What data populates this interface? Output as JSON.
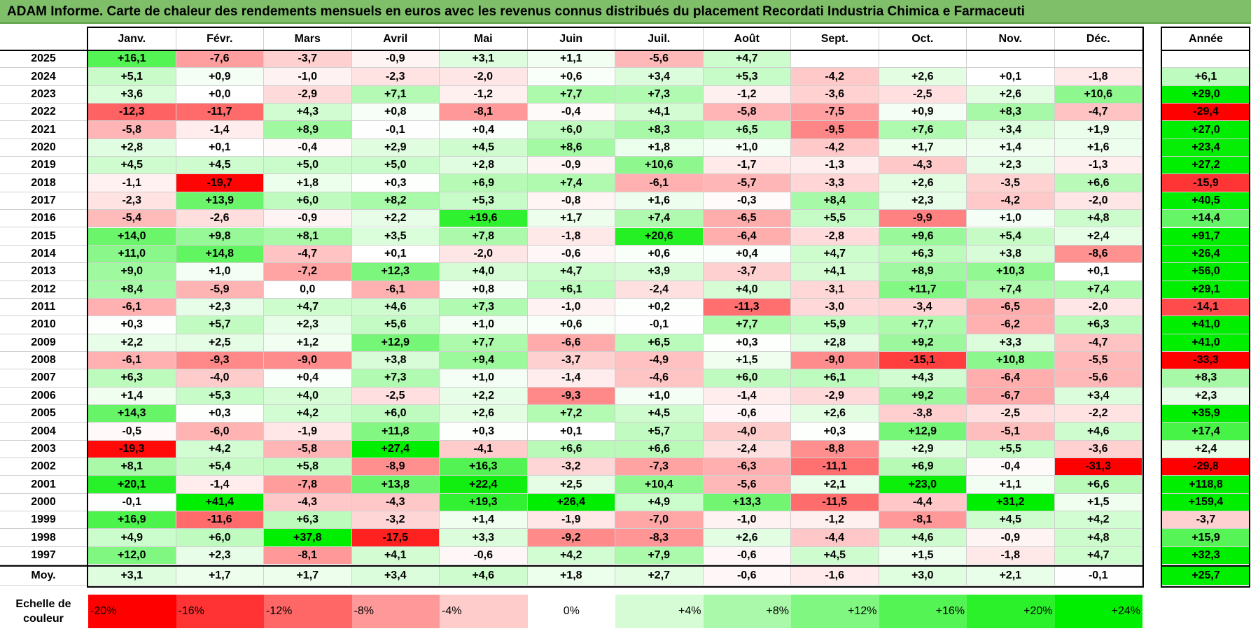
{
  "title": "ADAM Informe. Carte de chaleur des rendements mensuels en euros avec les revenus connus distribués du placement Recordati Industria Chimica e Farmaceuti",
  "chart_data": {
    "type": "heatmap",
    "months": [
      "Janv.",
      "Févr.",
      "Mars",
      "Avril",
      "Mai",
      "Juin",
      "Juil.",
      "Août",
      "Sept.",
      "Oct.",
      "Nov.",
      "Déc."
    ],
    "year_header": "Année",
    "rows": [
      {
        "year": "2025",
        "values": [
          "+16,1",
          "-7,6",
          "-3,7",
          "-0,9",
          "+3,1",
          "+1,1",
          "-5,6",
          "+4,7",
          "",
          "",
          "",
          ""
        ],
        "annual": ""
      },
      {
        "year": "2024",
        "values": [
          "+5,1",
          "+0,9",
          "-1,0",
          "-2,3",
          "-2,0",
          "+0,6",
          "+3,4",
          "+5,3",
          "-4,2",
          "+2,6",
          "+0,1",
          "-1,8"
        ],
        "annual": "+6,1"
      },
      {
        "year": "2023",
        "values": [
          "+3,6",
          "+0,0",
          "-2,9",
          "+7,1",
          "-1,2",
          "+7,7",
          "+7,3",
          "-1,2",
          "-3,6",
          "-2,5",
          "+2,6",
          "+10,6"
        ],
        "annual": "+29,0"
      },
      {
        "year": "2022",
        "values": [
          "-12,3",
          "-11,7",
          "+4,3",
          "+0,8",
          "-8,1",
          "-0,4",
          "+4,1",
          "-5,8",
          "-7,5",
          "+0,9",
          "+8,3",
          "-4,7"
        ],
        "annual": "-29,4"
      },
      {
        "year": "2021",
        "values": [
          "-5,8",
          "-1,4",
          "+8,9",
          "-0,1",
          "+0,4",
          "+6,0",
          "+8,3",
          "+6,5",
          "-9,5",
          "+7,6",
          "+3,4",
          "+1,9"
        ],
        "annual": "+27,0"
      },
      {
        "year": "2020",
        "values": [
          "+2,8",
          "+0,1",
          "-0,4",
          "+2,9",
          "+4,5",
          "+8,6",
          "+1,8",
          "+1,0",
          "-4,2",
          "+1,7",
          "+1,4",
          "+1,6"
        ],
        "annual": "+23,4"
      },
      {
        "year": "2019",
        "values": [
          "+4,5",
          "+4,5",
          "+5,0",
          "+5,0",
          "+2,8",
          "-0,9",
          "+10,6",
          "-1,7",
          "-1,3",
          "-4,3",
          "+2,3",
          "-1,3"
        ],
        "annual": "+27,2"
      },
      {
        "year": "2018",
        "values": [
          "-1,1",
          "-19,7",
          "+1,8",
          "+0,3",
          "+6,9",
          "+7,4",
          "-6,1",
          "-5,7",
          "-3,3",
          "+2,6",
          "-3,5",
          "+6,6"
        ],
        "annual": "-15,9"
      },
      {
        "year": "2017",
        "values": [
          "-2,3",
          "+13,9",
          "+6,0",
          "+8,2",
          "+5,3",
          "-0,8",
          "+1,6",
          "-0,3",
          "+8,4",
          "+2,3",
          "-4,2",
          "-2,0"
        ],
        "annual": "+40,5"
      },
      {
        "year": "2016",
        "values": [
          "-5,4",
          "-2,6",
          "-0,9",
          "+2,2",
          "+19,6",
          "+1,7",
          "+7,4",
          "-6,5",
          "+5,5",
          "-9,9",
          "+1,0",
          "+4,8"
        ],
        "annual": "+14,4"
      },
      {
        "year": "2015",
        "values": [
          "+14,0",
          "+9,8",
          "+8,1",
          "+3,5",
          "+7,8",
          "-1,8",
          "+20,6",
          "-6,4",
          "-2,8",
          "+9,6",
          "+5,4",
          "+2,4"
        ],
        "annual": "+91,7"
      },
      {
        "year": "2014",
        "values": [
          "+11,0",
          "+14,8",
          "-4,7",
          "+0,1",
          "-2,0",
          "-0,6",
          "+0,6",
          "+0,4",
          "+4,7",
          "+6,3",
          "+3,8",
          "-8,6"
        ],
        "annual": "+26,4"
      },
      {
        "year": "2013",
        "values": [
          "+9,0",
          "+1,0",
          "-7,2",
          "+12,3",
          "+4,0",
          "+4,7",
          "+3,9",
          "-3,7",
          "+4,1",
          "+8,9",
          "+10,3",
          "+0,1"
        ],
        "annual": "+56,0"
      },
      {
        "year": "2012",
        "values": [
          "+8,4",
          "-5,9",
          "0,0",
          "-6,1",
          "+0,8",
          "+6,1",
          "-2,4",
          "+4,0",
          "-3,1",
          "+11,7",
          "+7,4",
          "+7,4"
        ],
        "annual": "+29,1"
      },
      {
        "year": "2011",
        "values": [
          "-6,1",
          "+2,3",
          "+4,7",
          "+4,6",
          "+7,3",
          "-1,0",
          "+0,2",
          "-11,3",
          "-3,0",
          "-3,4",
          "-6,5",
          "-2,0"
        ],
        "annual": "-14,1"
      },
      {
        "year": "2010",
        "values": [
          "+0,3",
          "+5,7",
          "+2,3",
          "+5,6",
          "+1,0",
          "+0,6",
          "-0,1",
          "+7,7",
          "+5,9",
          "+7,7",
          "-6,2",
          "+6,3"
        ],
        "annual": "+41,0"
      },
      {
        "year": "2009",
        "values": [
          "+2,2",
          "+2,5",
          "+1,2",
          "+12,9",
          "+7,7",
          "-6,6",
          "+6,5",
          "+0,3",
          "+2,8",
          "+9,2",
          "+3,3",
          "-4,7"
        ],
        "annual": "+41,0"
      },
      {
        "year": "2008",
        "values": [
          "-6,1",
          "-9,3",
          "-9,0",
          "+3,8",
          "+9,4",
          "-3,7",
          "-4,9",
          "+1,5",
          "-9,0",
          "-15,1",
          "+10,8",
          "-5,5"
        ],
        "annual": "-33,3"
      },
      {
        "year": "2007",
        "values": [
          "+6,3",
          "-4,0",
          "+0,4",
          "+7,3",
          "+1,0",
          "-1,4",
          "-4,6",
          "+6,0",
          "+6,1",
          "+4,3",
          "-6,4",
          "-5,6"
        ],
        "annual": "+8,3"
      },
      {
        "year": "2006",
        "values": [
          "+1,4",
          "+5,3",
          "+4,0",
          "-2,5",
          "+2,2",
          "-9,3",
          "+1,0",
          "-1,4",
          "-2,9",
          "+9,2",
          "-6,7",
          "+3,4"
        ],
        "annual": "+2,3"
      },
      {
        "year": "2005",
        "values": [
          "+14,3",
          "+0,3",
          "+4,2",
          "+6,0",
          "+2,6",
          "+7,2",
          "+4,5",
          "-0,6",
          "+2,6",
          "-3,8",
          "-2,5",
          "-2,2"
        ],
        "annual": "+35,9"
      },
      {
        "year": "2004",
        "values": [
          "-0,5",
          "-6,0",
          "-1,9",
          "+11,8",
          "+0,3",
          "+0,1",
          "+5,7",
          "-4,0",
          "+0,3",
          "+12,9",
          "-5,1",
          "+4,6"
        ],
        "annual": "+17,4"
      },
      {
        "year": "2003",
        "values": [
          "-19,3",
          "+4,2",
          "-5,8",
          "+27,4",
          "-4,1",
          "+6,6",
          "+6,6",
          "-2,4",
          "-8,8",
          "+2,9",
          "+5,5",
          "-3,6"
        ],
        "annual": "+2,4"
      },
      {
        "year": "2002",
        "values": [
          "+8,1",
          "+5,4",
          "+5,8",
          "-8,9",
          "+16,3",
          "-3,2",
          "-7,3",
          "-6,3",
          "-11,1",
          "+6,9",
          "-0,4",
          "-31,3"
        ],
        "annual": "-29,8"
      },
      {
        "year": "2001",
        "values": [
          "+20,1",
          "-1,4",
          "-7,8",
          "+13,8",
          "+22,4",
          "+2,5",
          "+10,4",
          "-5,6",
          "+2,1",
          "+23,0",
          "+1,1",
          "+6,6"
        ],
        "annual": "+118,8"
      },
      {
        "year": "2000",
        "values": [
          "-0,1",
          "+41,4",
          "-4,3",
          "-4,3",
          "+19,3",
          "+26,4",
          "+4,9",
          "+13,3",
          "-11,5",
          "-4,4",
          "+31,2",
          "+1,5"
        ],
        "annual": "+159,4"
      },
      {
        "year": "1999",
        "values": [
          "+16,9",
          "-11,6",
          "+6,3",
          "-3,2",
          "+1,4",
          "-1,9",
          "-7,0",
          "-1,0",
          "-1,2",
          "-8,1",
          "+4,5",
          "+4,2"
        ],
        "annual": "-3,7"
      },
      {
        "year": "1998",
        "values": [
          "+4,9",
          "+6,0",
          "+37,8",
          "-17,5",
          "+3,3",
          "-9,2",
          "-8,3",
          "+2,6",
          "-4,4",
          "+4,6",
          "-0,9",
          "+4,8"
        ],
        "annual": "+15,9"
      },
      {
        "year": "1997",
        "values": [
          "+12,0",
          "+2,3",
          "-8,1",
          "+4,1",
          "-0,6",
          "+4,2",
          "+7,9",
          "-0,6",
          "+4,5",
          "+1,5",
          "-1,8",
          "+4,7"
        ],
        "annual": "+32,3"
      }
    ],
    "average": {
      "label": "Moy.",
      "values": [
        "+3,1",
        "+1,7",
        "+1,7",
        "+3,4",
        "+4,6",
        "+1,8",
        "+2,7",
        "-0,6",
        "-1,6",
        "+3,0",
        "+2,1",
        "-0,1"
      ],
      "annual": "+25,7"
    },
    "scale": {
      "label_line1": "Echelle de",
      "label_line2": "couleur",
      "steps": [
        "-20%",
        "-16%",
        "-12%",
        "-8%",
        "-4%",
        "0%",
        "+4%",
        "+8%",
        "+12%",
        "+16%",
        "+20%",
        "+24%"
      ]
    },
    "colors": {
      "negative_max": "#ff0000",
      "neutral": "#ffffff",
      "positive_max": "#00ee00",
      "title_background": "#7fbf6a"
    }
  }
}
